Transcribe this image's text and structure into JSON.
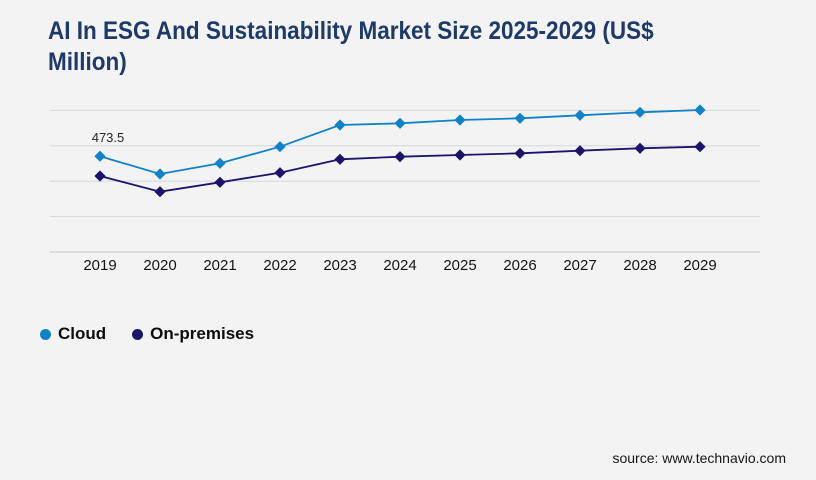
{
  "page": {
    "background": "#f3f3f4"
  },
  "header": {
    "title": "AI In ESG And Sustainability Market Size 2025-2029 (US$ Million)",
    "title_lines": [
      "AI In ESG And Sustainability Market Size 2025-2029 (US$",
      "Million)"
    ],
    "title_color": "#1d3a68"
  },
  "chart_data": {
    "type": "line",
    "title": "AI In ESG And Sustainability Market Size 2025-2029 (US$ Million)",
    "unit": "US$ Million",
    "categories": [
      "2019",
      "2020",
      "2021",
      "2022",
      "2023",
      "2024",
      "2025",
      "2026",
      "2027",
      "2028",
      "2029"
    ],
    "series": [
      {
        "name": "Cloud",
        "color": "#0f82c9",
        "values": [
          473.5,
          385.6,
          438.4,
          520.5,
          627.8,
          636.2,
          652.5,
          660.9,
          675.7,
          690.6,
          701.9
        ]
      },
      {
        "name": "On-premises",
        "color": "#1c146b",
        "values": [
          375.7,
          298.1,
          344.5,
          392.0,
          458.2,
          471.1,
          479.5,
          487.9,
          500.7,
          512.6,
          520.5
        ]
      }
    ],
    "annotations": [
      {
        "series": "Cloud",
        "category": "2019",
        "text": "473.5"
      }
    ],
    "ylim": [
      0,
      775
    ],
    "y_gridline_values": [
      175,
      350,
      525,
      700
    ],
    "grid": "horizontal",
    "y_axis_labels": "none",
    "legend_position": "bottom-left",
    "marker": "diamond",
    "gridline_color": "#d7d7d9",
    "axis_line_color": "#c5c5c7"
  },
  "footer": {
    "source": "source: www.technavio.com"
  }
}
